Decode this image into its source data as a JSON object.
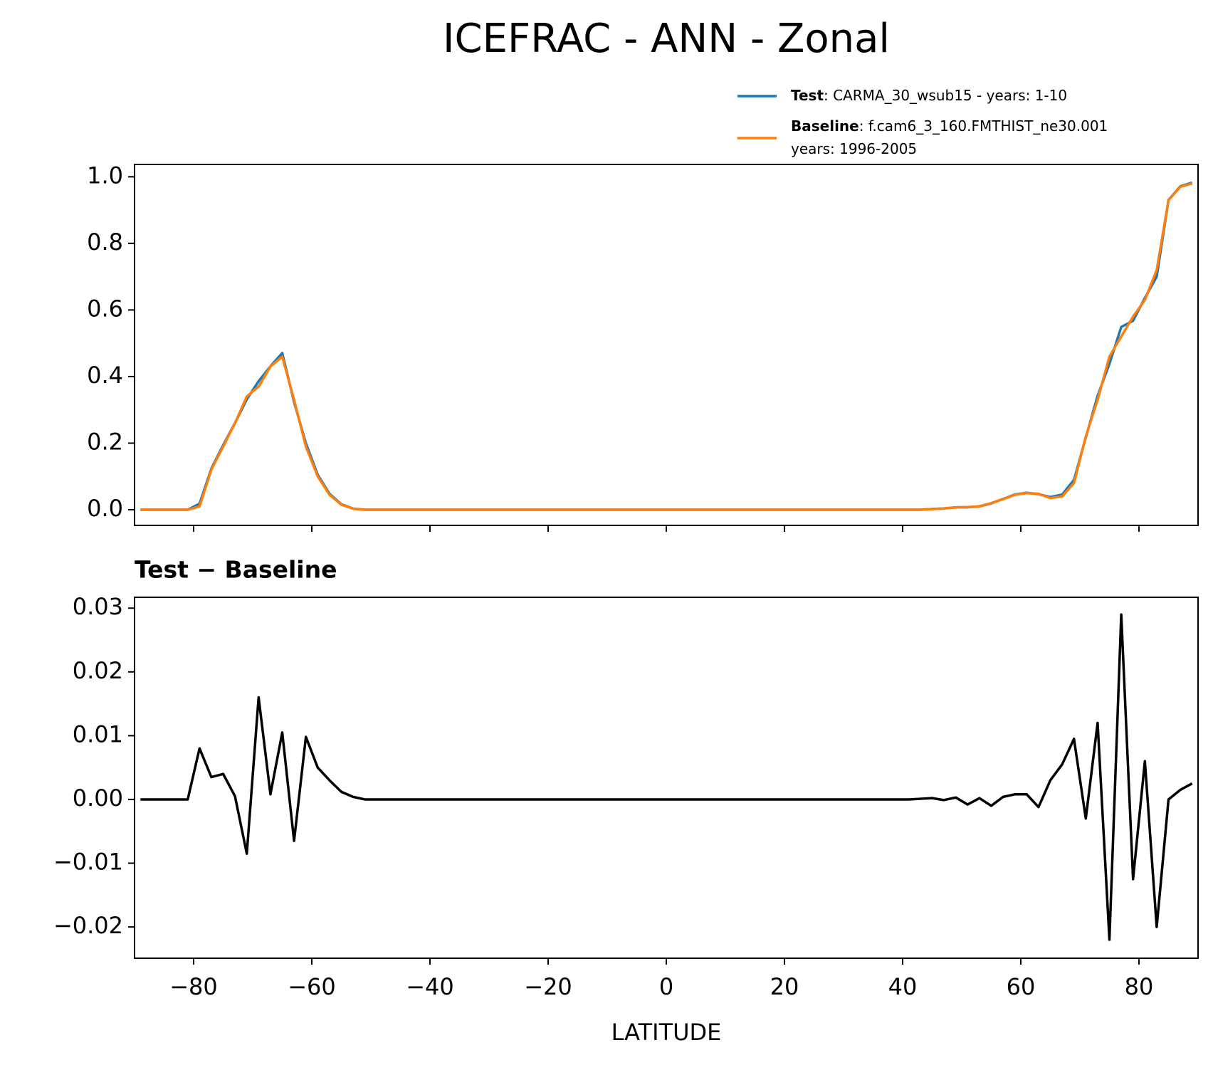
{
  "chart_data": [
    {
      "type": "line",
      "title": "ICEFRAC - ANN - Zonal",
      "x": [
        -89,
        -87,
        -85,
        -83,
        -81,
        -79,
        -77,
        -75,
        -73,
        -71,
        -69,
        -67,
        -65,
        -63,
        -61,
        -59,
        -57,
        -55,
        -53,
        -51,
        -49,
        -47,
        -45,
        -43,
        -41,
        -39,
        -37,
        -35,
        -33,
        -31,
        -29,
        -27,
        -25,
        -23,
        -21,
        -19,
        -17,
        -15,
        -13,
        -11,
        -9,
        -7,
        -5,
        -3,
        -1,
        1,
        3,
        5,
        7,
        9,
        11,
        13,
        15,
        17,
        19,
        21,
        23,
        25,
        27,
        29,
        31,
        33,
        35,
        37,
        39,
        41,
        43,
        45,
        47,
        49,
        51,
        53,
        55,
        57,
        59,
        61,
        63,
        65,
        67,
        69,
        71,
        73,
        75,
        77,
        79,
        81,
        83,
        85,
        87,
        89
      ],
      "series": [
        {
          "name": "Test",
          "legend_text": [
            ": CARMA_30_wsub15 - years: 1-10"
          ],
          "color": "#1f77b4",
          "values": [
            0,
            0,
            0,
            0,
            0,
            0.018,
            0.1235,
            0.194,
            0.2605,
            0.3315,
            0.386,
            0.4308,
            0.4705,
            0.3235,
            0.1998,
            0.105,
            0.048,
            0.0162,
            0.0034,
            0,
            0,
            0,
            0,
            0,
            0,
            0,
            0,
            0,
            0,
            0,
            0,
            0,
            0,
            0,
            0,
            0,
            0,
            0,
            0,
            0,
            0,
            0,
            0,
            0,
            0,
            0,
            0,
            0,
            0,
            0,
            0,
            0,
            0,
            0,
            0,
            0,
            0,
            0,
            0,
            0,
            0,
            0,
            0,
            0,
            0,
            0,
            0.0001,
            0.0022,
            0.0039,
            0.0073,
            0.0072,
            0.0102,
            0.019,
            0.0324,
            0.0458,
            0.0508,
            0.0468,
            0.038,
            0.0455,
            0.0895,
            0.217,
            0.342,
            0.438,
            0.549,
            0.5675,
            0.636,
            0.7,
            0.93,
            0.9715,
            0.9825
          ]
        },
        {
          "name": "Baseline",
          "legend_text": [
            ": f.cam6_3_160.FMTHIST_ne30.001",
            "years: 1996-2005"
          ],
          "color": "#ff7f0e",
          "values": [
            0,
            0,
            0,
            0,
            0,
            0.01,
            0.12,
            0.19,
            0.26,
            0.34,
            0.37,
            0.43,
            0.46,
            0.33,
            0.19,
            0.1,
            0.045,
            0.015,
            0.003,
            0,
            0,
            0,
            0,
            0,
            0,
            0,
            0,
            0,
            0,
            0,
            0,
            0,
            0,
            0,
            0,
            0,
            0,
            0,
            0,
            0,
            0,
            0,
            0,
            0,
            0,
            0,
            0,
            0,
            0,
            0,
            0,
            0,
            0,
            0,
            0,
            0,
            0,
            0,
            0,
            0,
            0,
            0,
            0,
            0,
            0,
            0,
            0,
            0.002,
            0.004,
            0.007,
            0.008,
            0.01,
            0.02,
            0.032,
            0.045,
            0.05,
            0.048,
            0.035,
            0.04,
            0.08,
            0.22,
            0.33,
            0.46,
            0.52,
            0.58,
            0.63,
            0.72,
            0.93,
            0.97,
            0.98
          ]
        }
      ],
      "xlim": [
        -90,
        90
      ],
      "xticks": [
        -80,
        -60,
        -40,
        -20,
        0,
        20,
        40,
        60,
        80
      ],
      "ylim": [
        -0.047,
        1.037
      ],
      "yticks": [
        {
          "value": 0,
          "label": "0.0"
        },
        0.2,
        0.4,
        0.6,
        0.8,
        {
          "value": 1,
          "label": "1.0"
        }
      ],
      "legend": "upper right"
    },
    {
      "type": "line",
      "title": "Test − Baseline",
      "xlabel": "LATITUDE",
      "x": [
        -89,
        -87,
        -85,
        -83,
        -81,
        -79,
        -77,
        -75,
        -73,
        -71,
        -69,
        -67,
        -65,
        -63,
        -61,
        -59,
        -57,
        -55,
        -53,
        -51,
        -49,
        -47,
        -45,
        -43,
        -41,
        -39,
        -37,
        -35,
        -33,
        -31,
        -29,
        -27,
        -25,
        -23,
        -21,
        -19,
        -17,
        -15,
        -13,
        -11,
        -9,
        -7,
        -5,
        -3,
        -1,
        1,
        3,
        5,
        7,
        9,
        11,
        13,
        15,
        17,
        19,
        21,
        23,
        25,
        27,
        29,
        31,
        33,
        35,
        37,
        39,
        41,
        43,
        45,
        47,
        49,
        51,
        53,
        55,
        57,
        59,
        61,
        63,
        65,
        67,
        69,
        71,
        73,
        75,
        77,
        79,
        81,
        83,
        85,
        87,
        89
      ],
      "color": "#000000",
      "values": [
        0,
        0,
        0,
        0,
        0,
        0.008,
        0.0035,
        0.004,
        0.0005,
        -0.0085,
        0.016,
        0.0008,
        0.0105,
        -0.0065,
        0.0098,
        0.005,
        0.003,
        0.0012,
        0.0004,
        0,
        0,
        0,
        0,
        0,
        0,
        0,
        0,
        0,
        0,
        0,
        0,
        0,
        0,
        0,
        0,
        0,
        0,
        0,
        0,
        0,
        0,
        0,
        0,
        0,
        0,
        0,
        0,
        0,
        0,
        0,
        0,
        0,
        0,
        0,
        0,
        0,
        0,
        0,
        0,
        0,
        0,
        0,
        0,
        0,
        0,
        0,
        0.0001,
        0.0002,
        -0.0001,
        0.0003,
        -0.0008,
        0.0002,
        -0.001,
        0.0004,
        0.0008,
        0.0008,
        -0.0012,
        0.003,
        0.0055,
        0.0095,
        -0.003,
        0.012,
        -0.022,
        0.029,
        -0.0125,
        0.006,
        -0.02,
        0,
        0.0015,
        0.0025
      ],
      "xlim": [
        -90,
        90
      ],
      "xticks": [
        {
          "value": -80,
          "label": "−80"
        },
        {
          "value": -60,
          "label": "−60"
        },
        {
          "value": -40,
          "label": "−40"
        },
        {
          "value": -20,
          "label": "−20"
        },
        0,
        20,
        40,
        60,
        80
      ],
      "ylim": [
        -0.0249,
        0.0317
      ],
      "yticks": [
        {
          "value": -0.02,
          "label": "−0.02"
        },
        {
          "value": -0.01,
          "label": "−0.01"
        },
        {
          "value": 0,
          "label": "0.00"
        },
        0.01,
        0.02,
        0.03
      ]
    }
  ]
}
